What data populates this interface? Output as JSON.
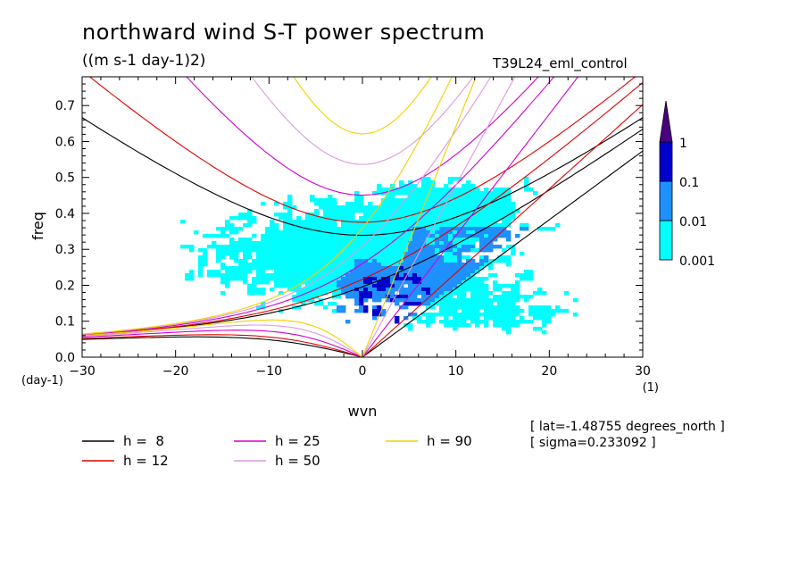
{
  "page": {
    "title": "northward wind S-T power spectrum",
    "subtitle": "((m s-1 day-1)2)",
    "run_name": "T39L24_eml_control",
    "lat_note": "[ lat=-1.48755 degrees_north ]",
    "sigma_note": "[ sigma=0.233092 ]"
  },
  "chart_data": {
    "type": "heatmap",
    "title": "northward wind S-T power spectrum",
    "xlabel": "wvn",
    "ylabel": "freq",
    "x_unit": "(1)",
    "y_unit": "(day-1)",
    "xlim": [
      -30,
      30
    ],
    "ylim": [
      0,
      0.78
    ],
    "x_ticks": [
      -30,
      -20,
      -10,
      0,
      10,
      20,
      30
    ],
    "x_tick_labels": [
      "−30",
      "−20",
      "−10",
      "0",
      "10",
      "20",
      "30"
    ],
    "y_ticks": [
      0.0,
      0.1,
      0.2,
      0.3,
      0.4,
      0.5,
      0.6,
      0.7
    ],
    "y_tick_labels": [
      "0.0",
      "0.1",
      "0.2",
      "0.3",
      "0.4",
      "0.5",
      "0.6",
      "0.7"
    ],
    "colorbar": {
      "levels": [
        0.001,
        0.01,
        0.1,
        1
      ],
      "labels": [
        "0.001",
        "0.01",
        "0.1",
        "1"
      ],
      "colors": [
        "#00ffff",
        "#1e90ff",
        "#0000cd",
        "#4b0082"
      ]
    },
    "dispersion_curves": [
      {
        "label": "h =  8",
        "h": 8,
        "color": "#000000"
      },
      {
        "label": "h = 12",
        "h": 12,
        "color": "#e00000"
      },
      {
        "label": "h = 25",
        "h": 25,
        "color": "#d000d0"
      },
      {
        "label": "h = 50",
        "h": 50,
        "color": "#dd99dd"
      },
      {
        "label": "h = 90",
        "h": 90,
        "color": "#f0d000"
      }
    ]
  }
}
